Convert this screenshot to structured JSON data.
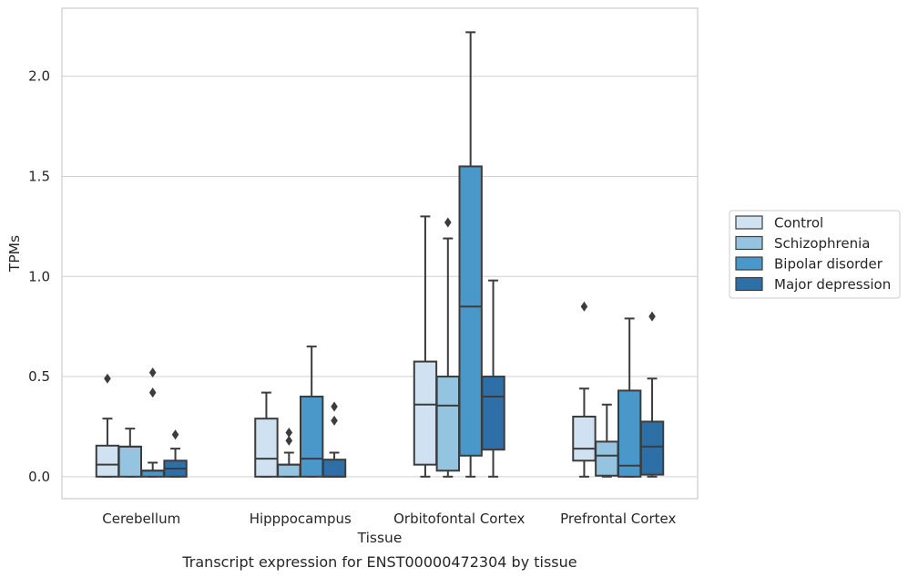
{
  "chart_data": {
    "type": "boxplot",
    "title": "",
    "caption": "Transcript expression for ENST00000472304 by tissue",
    "xlabel": "Tissue",
    "ylabel": "TPMs",
    "ylim": [
      -0.11,
      2.34
    ],
    "yticks": [
      0.0,
      0.5,
      1.0,
      1.5,
      2.0
    ],
    "ytick_labels": [
      "0.0",
      "0.5",
      "1.0",
      "1.5",
      "2.0"
    ],
    "grid": "horizontal",
    "legend_position": "right",
    "categories": [
      "Cerebellum",
      "Hipppocampus",
      "Orbitofontal Cortex",
      "Prefrontal Cortex"
    ],
    "series": [
      {
        "name": "Control",
        "color": "#d0e1f2",
        "boxes": [
          {
            "q1": 0.0,
            "median": 0.06,
            "q3": 0.155,
            "whisker_low": 0.0,
            "whisker_high": 0.29,
            "outliers": [
              0.49
            ]
          },
          {
            "q1": 0.0,
            "median": 0.09,
            "q3": 0.29,
            "whisker_low": 0.0,
            "whisker_high": 0.42,
            "outliers": []
          },
          {
            "q1": 0.06,
            "median": 0.36,
            "q3": 0.575,
            "whisker_low": 0.0,
            "whisker_high": 1.3,
            "outliers": []
          },
          {
            "q1": 0.08,
            "median": 0.14,
            "q3": 0.3,
            "whisker_low": 0.0,
            "whisker_high": 0.44,
            "outliers": [
              0.85
            ]
          }
        ]
      },
      {
        "name": "Schizophrenia",
        "color": "#94c4df",
        "boxes": [
          {
            "q1": 0.0,
            "median": 0.15,
            "q3": 0.15,
            "whisker_low": 0.0,
            "whisker_high": 0.24,
            "outliers": []
          },
          {
            "q1": 0.0,
            "median": 0.06,
            "q3": 0.06,
            "whisker_low": 0.0,
            "whisker_high": 0.12,
            "outliers": [
              0.18,
              0.22
            ]
          },
          {
            "q1": 0.03,
            "median": 0.355,
            "q3": 0.5,
            "whisker_low": 0.0,
            "whisker_high": 1.19,
            "outliers": [
              1.27
            ]
          },
          {
            "q1": 0.005,
            "median": 0.105,
            "q3": 0.175,
            "whisker_low": 0.0,
            "whisker_high": 0.36,
            "outliers": []
          }
        ]
      },
      {
        "name": "Bipolar disorder",
        "color": "#4a98c9",
        "boxes": [
          {
            "q1": 0.0,
            "median": 0.03,
            "q3": 0.03,
            "whisker_low": 0.0,
            "whisker_high": 0.07,
            "outliers": [
              0.42,
              0.52
            ]
          },
          {
            "q1": 0.0,
            "median": 0.09,
            "q3": 0.4,
            "whisker_low": 0.0,
            "whisker_high": 0.65,
            "outliers": []
          },
          {
            "q1": 0.105,
            "median": 0.85,
            "q3": 1.55,
            "whisker_low": 0.0,
            "whisker_high": 2.22,
            "outliers": []
          },
          {
            "q1": 0.0,
            "median": 0.055,
            "q3": 0.43,
            "whisker_low": 0.0,
            "whisker_high": 0.79,
            "outliers": []
          }
        ]
      },
      {
        "name": "Major depression",
        "color": "#2e6fa8",
        "boxes": [
          {
            "q1": 0.0,
            "median": 0.04,
            "q3": 0.08,
            "whisker_low": 0.0,
            "whisker_high": 0.14,
            "outliers": [
              0.21
            ]
          },
          {
            "q1": 0.0,
            "median": 0.0,
            "q3": 0.085,
            "whisker_low": 0.0,
            "whisker_high": 0.12,
            "outliers": [
              0.28,
              0.35
            ]
          },
          {
            "q1": 0.135,
            "median": 0.4,
            "q3": 0.5,
            "whisker_low": 0.0,
            "whisker_high": 0.98,
            "outliers": []
          },
          {
            "q1": 0.01,
            "median": 0.15,
            "q3": 0.275,
            "whisker_low": 0.0,
            "whisker_high": 0.49,
            "outliers": [
              0.8
            ]
          }
        ]
      }
    ]
  }
}
